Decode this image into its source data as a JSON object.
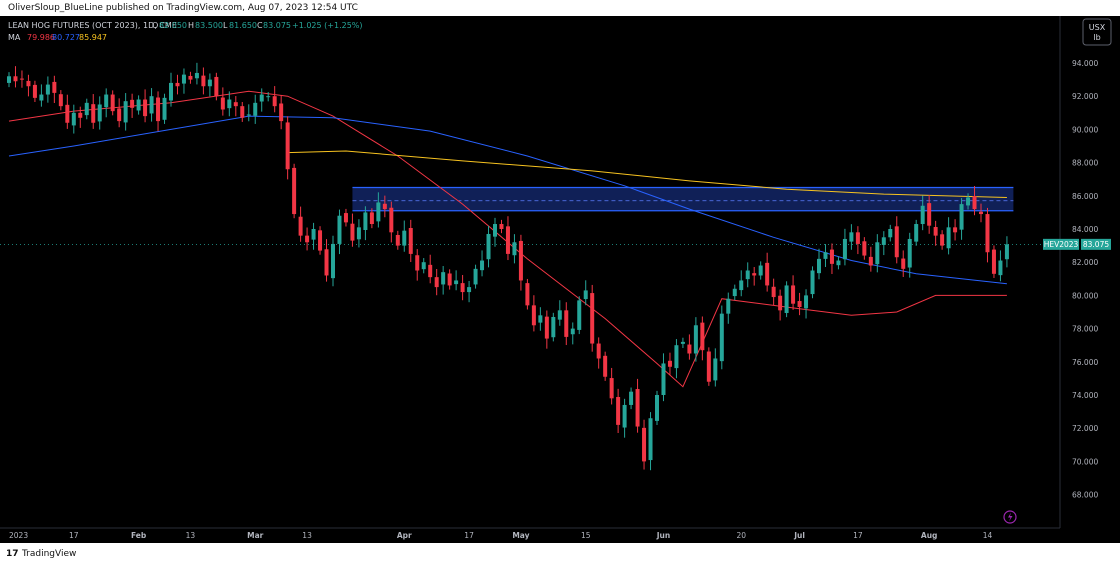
{
  "header": {
    "publisher_line": "OliverSloup_BlueLine published on TradingView.com, Aug 07, 2023 12:54 UTC"
  },
  "legend": {
    "title": "LEAN HOG FUTURES (OCT 2023), 1D, CME",
    "o_label": "O",
    "o": "82.050",
    "h_label": "H",
    "h": "83.500",
    "l_label": "L",
    "l": "81.650",
    "c_label": "C",
    "c": "83.075",
    "change": "+1.025 (+1.25%)",
    "ma_label": "MA",
    "ma_values": [
      "79.986",
      "80.727",
      "85.947"
    ]
  },
  "currency_badge": {
    "line1": "USX",
    "line2": "lb"
  },
  "price_tag": {
    "symbol": "HEV2023",
    "value": "83.075"
  },
  "footer": {
    "logo": "17",
    "brand": "TradingView"
  },
  "colors": {
    "up": "#26a69a",
    "down": "#f23645",
    "ma_red": "#f23645",
    "ma_blue": "#2962ff",
    "ma_yellow": "#f7c320",
    "zone": "#1e3a9e",
    "zone_line": "#2962ff",
    "axis_text": "#b2b5be"
  },
  "chart_data": {
    "type": "candlestick",
    "title": "LEAN HOG FUTURES (OCT 2023), 1D, CME",
    "ylim": [
      66.5,
      96.0
    ],
    "y_ticks": [
      "94.000",
      "92.000",
      "90.000",
      "88.000",
      "86.000",
      "84.000",
      "82.000",
      "80.000",
      "78.000",
      "76.000",
      "74.000",
      "72.000",
      "70.000",
      "68.000"
    ],
    "x_labels": [
      {
        "label": "2023",
        "day": 0
      },
      {
        "label": "17",
        "day": 10
      },
      {
        "label": "Feb",
        "day": 20
      },
      {
        "label": "13",
        "day": 28
      },
      {
        "label": "Mar",
        "day": 38
      },
      {
        "label": "13",
        "day": 46
      },
      {
        "label": "Apr",
        "day": 61
      },
      {
        "label": "17",
        "day": 71
      },
      {
        "label": "May",
        "day": 79
      },
      {
        "label": "15",
        "day": 89
      },
      {
        "label": "Jun",
        "day": 101
      },
      {
        "label": "20",
        "day": 113
      },
      {
        "label": "Jul",
        "day": 122
      },
      {
        "label": "17",
        "day": 131
      },
      {
        "label": "Aug",
        "day": 142
      },
      {
        "label": "14",
        "day": 151
      }
    ],
    "closes": [
      93.2,
      92.9,
      93.0,
      92.6,
      91.9,
      92.1,
      92.7,
      92.2,
      91.4,
      90.4,
      91.0,
      90.7,
      91.6,
      90.4,
      91.5,
      92.1,
      91.1,
      90.5,
      91.7,
      91.3,
      91.8,
      90.8,
      92.0,
      90.5,
      91.9,
      92.8,
      92.6,
      93.3,
      93.0,
      93.4,
      92.6,
      93.0,
      92.0,
      91.2,
      91.8,
      91.4,
      90.7,
      90.9,
      91.6,
      92.1,
      92.0,
      91.4,
      90.5,
      87.6,
      84.9,
      83.6,
      83.2,
      84.0,
      82.7,
      81.2,
      83.1,
      84.8,
      84.4,
      83.3,
      84.1,
      85.0,
      84.3,
      85.6,
      85.2,
      83.8,
      83.0,
      83.9,
      82.5,
      81.5,
      82.0,
      81.1,
      80.5,
      81.4,
      80.6,
      80.9,
      80.2,
      80.5,
      81.6,
      82.1,
      83.7,
      84.3,
      84.0,
      82.5,
      83.2,
      80.9,
      79.4,
      78.2,
      78.8,
      77.4,
      78.7,
      79.1,
      77.5,
      78.0,
      79.7,
      80.3,
      77.1,
      76.2,
      75.1,
      73.8,
      72.2,
      73.4,
      74.2,
      72.1,
      70.0,
      72.6,
      74.0,
      75.9,
      75.7,
      77.0,
      77.2,
      76.5,
      78.2,
      76.7,
      74.8,
      76.2,
      78.9,
      79.8,
      80.4,
      80.9,
      81.5,
      81.2,
      81.8,
      80.6,
      79.9,
      79.1,
      80.6,
      79.5,
      79.3,
      80.0,
      81.5,
      82.2,
      82.6,
      81.9,
      82.1,
      83.4,
      83.8,
      83.1,
      82.4,
      81.8,
      83.2,
      83.5,
      84.0,
      82.3,
      81.6,
      83.4,
      84.3,
      85.4,
      84.2,
      83.6,
      83.0,
      84.1,
      83.8,
      85.5,
      85.9,
      85.2,
      84.9,
      82.6,
      81.3,
      82.1,
      83.075
    ],
    "ma_series": [
      {
        "name": "79.986",
        "color": "#f23645",
        "points": [
          [
            0,
            90.5
          ],
          [
            10,
            91.1
          ],
          [
            25,
            91.6
          ],
          [
            37,
            92.3
          ],
          [
            43,
            92.0
          ],
          [
            50,
            90.8
          ],
          [
            60,
            88.4
          ],
          [
            70,
            85.5
          ],
          [
            80,
            82.2
          ],
          [
            92,
            78.6
          ],
          [
            100,
            75.9
          ],
          [
            104,
            74.5
          ],
          [
            110,
            79.8
          ],
          [
            122,
            79.2
          ],
          [
            130,
            78.8
          ],
          [
            137,
            79.0
          ],
          [
            143,
            80.0
          ],
          [
            154,
            80.0
          ]
        ]
      },
      {
        "name": "80.727",
        "color": "#2962ff",
        "points": [
          [
            0,
            88.4
          ],
          [
            10,
            89.0
          ],
          [
            25,
            90.0
          ],
          [
            37,
            90.8
          ],
          [
            50,
            90.7
          ],
          [
            65,
            89.9
          ],
          [
            80,
            88.4
          ],
          [
            95,
            86.6
          ],
          [
            105,
            85.2
          ],
          [
            118,
            83.5
          ],
          [
            130,
            82.1
          ],
          [
            140,
            81.3
          ],
          [
            154,
            80.7
          ]
        ]
      },
      {
        "name": "85.947",
        "color": "#f7c320",
        "points": [
          [
            43,
            88.6
          ],
          [
            52,
            88.7
          ],
          [
            70,
            88.1
          ],
          [
            90,
            87.5
          ],
          [
            105,
            86.9
          ],
          [
            120,
            86.4
          ],
          [
            135,
            86.1
          ],
          [
            154,
            85.9
          ]
        ]
      }
    ],
    "zone": {
      "top": 86.5,
      "bottom": 85.1,
      "mid": 85.7,
      "from_day": 53,
      "to_day": 155
    },
    "last_price": 83.075
  }
}
